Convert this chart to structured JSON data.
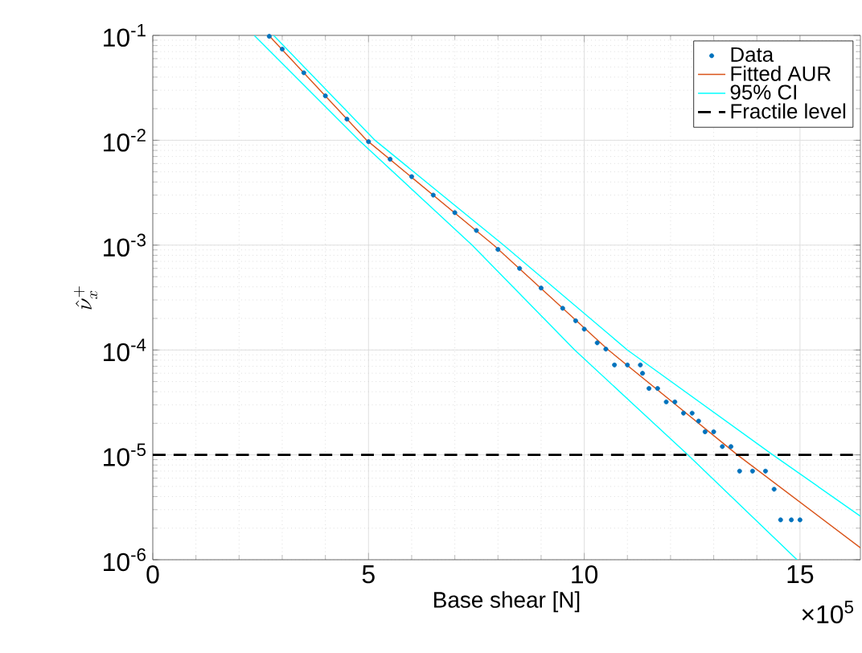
{
  "chart_data": {
    "type": "line",
    "xlabel": "Base shear [N]",
    "ylabel": "\\hat{\\nu}_x^+",
    "log": "y",
    "xlim": [
      0,
      16.4
    ],
    "ylim": [
      1e-06,
      0.1
    ],
    "xticks": [
      0,
      5,
      10,
      15
    ],
    "yticks": [
      {
        "value": 1e-06,
        "label": "10$^{-6}$"
      },
      {
        "value": 1e-05,
        "label": "10$^{-5}$"
      },
      {
        "value": 0.0001,
        "label": "10$^{-4}$"
      },
      {
        "value": 0.001,
        "label": "10$^{-3}$"
      },
      {
        "value": 0.01,
        "label": "10$^{-2}$"
      },
      {
        "value": 0.1,
        "label": "10$^{-1}$"
      }
    ],
    "grid": true,
    "legend": "top right",
    "annotations": [
      "×10$^{5}$"
    ],
    "series": [
      {
        "name": "Data",
        "type": "scatter",
        "color": "#0072bd",
        "x": [
          2.7,
          3.0,
          3.5,
          4.0,
          4.5,
          5.0,
          5.5,
          6.0,
          6.5,
          7.0,
          7.5,
          8.0,
          8.5,
          9.0,
          9.5,
          9.8,
          10.0,
          10.3,
          10.5,
          10.7,
          11.0,
          11.3,
          11.35,
          11.5,
          11.7,
          11.9,
          12.1,
          12.3,
          12.5,
          12.65,
          12.8,
          13.0,
          13.2,
          13.4,
          13.6,
          13.9,
          14.2,
          14.4,
          14.55,
          14.8,
          15.0
        ],
        "values": [
          0.098,
          0.074,
          0.044,
          0.0265,
          0.0159,
          0.0097,
          0.0066,
          0.0045,
          0.003,
          0.00204,
          0.00138,
          0.00091,
          0.0006,
          0.00039,
          0.00025,
          0.00019,
          0.000158,
          0.000117,
          0.000102,
          7.2e-05,
          7.2e-05,
          7.2e-05,
          6e-05,
          4.3e-05,
          4.3e-05,
          3.2e-05,
          3.2e-05,
          2.5e-05,
          2.5e-05,
          2.1e-05,
          1.66e-05,
          1.66e-05,
          1.2e-05,
          1.2e-05,
          7e-06,
          7e-06,
          7e-06,
          4.7e-06,
          2.4e-06,
          2.4e-06,
          2.4e-06
        ]
      },
      {
        "name": "Fitted AUR",
        "color": "#d95319",
        "x": [
          2.69,
          4.96,
          7.9,
          10.56,
          13.55,
          16.4
        ],
        "values": [
          0.1,
          0.01,
          0.001,
          0.0001,
          1e-05,
          1.3e-06
        ]
      },
      {
        "name": "95% CI",
        "color": "#00ffff",
        "x": [
          2.8,
          5.15,
          8.13,
          11.0,
          14.37,
          16.4
        ],
        "values": [
          0.1,
          0.01,
          0.001,
          0.0001,
          1e-05,
          2.6e-06
        ]
      },
      {
        "color": "#00ffff",
        "x": [
          2.35,
          4.78,
          7.4,
          9.78,
          12.4,
          14.93
        ],
        "values": [
          0.1,
          0.01,
          0.001,
          0.0001,
          1e-05,
          1e-06
        ]
      }
    ],
    "ref_lines": [
      {
        "axis": "y",
        "value": 1e-05,
        "label": "Fractile level",
        "color": "#000000",
        "line_style": "dashed"
      }
    ]
  }
}
